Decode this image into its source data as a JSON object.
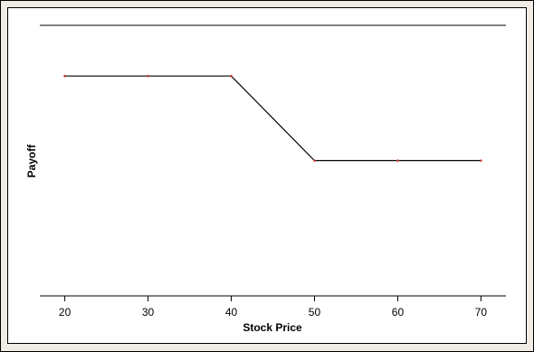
{
  "chart_data": {
    "type": "line",
    "title": "",
    "xlabel": "Stock Price",
    "ylabel": "Payoff",
    "x": [
      20,
      30,
      40,
      50,
      60,
      70
    ],
    "series": [
      {
        "values": [
          1.0,
          1.0,
          1.0,
          0.0,
          0.0,
          0.0
        ]
      }
    ],
    "xlim": [
      17,
      73
    ],
    "ylim": [
      -1.6,
      1.6
    ],
    "xticks": [
      20,
      30,
      40,
      50,
      60,
      70
    ],
    "yticks": [],
    "grid": false,
    "colors": {
      "frame_background": "#f0ebe3",
      "plot_background": "#ffffff",
      "line": "#000000",
      "marker": "#cc3333"
    }
  }
}
